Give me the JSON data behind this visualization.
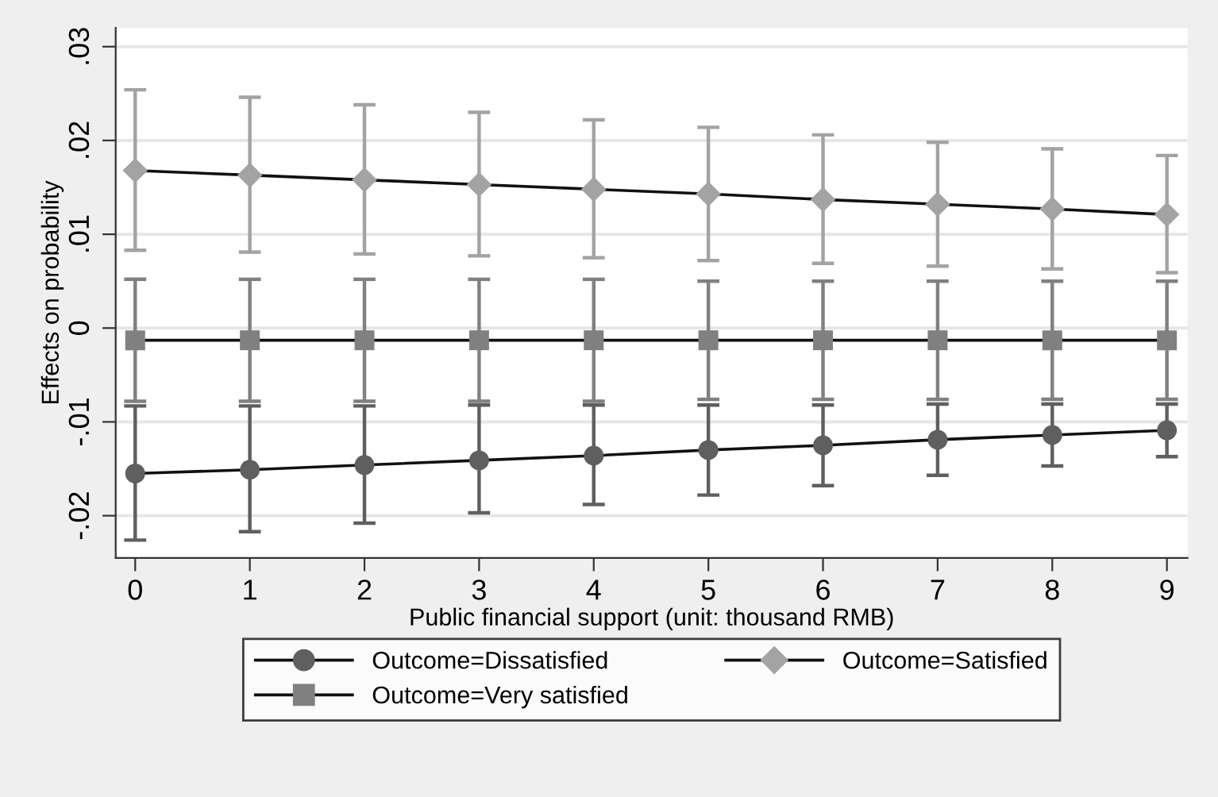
{
  "chart_data": {
    "type": "line",
    "xlabel": "Public financial support (unit: thousand RMB)",
    "ylabel": "Effects on probability",
    "x": [
      0,
      1,
      2,
      3,
      4,
      5,
      6,
      7,
      8,
      9
    ],
    "xlim": [
      -0.17,
      9.18
    ],
    "xticks": [
      0,
      1,
      2,
      3,
      4,
      5,
      6,
      7,
      8,
      9
    ],
    "ylim": [
      -0.0245,
      0.032
    ],
    "yticks": [
      {
        "value": -0.02,
        "label": "-.02"
      },
      {
        "value": -0.01,
        "label": "-.01"
      },
      0,
      {
        "value": 0.01,
        "label": ".01"
      },
      {
        "value": 0.02,
        "label": ".02"
      },
      {
        "value": 0.03,
        "label": ".03"
      }
    ],
    "grid": "y",
    "legend": "bottom",
    "line_style": "solid",
    "series": [
      {
        "name": "Outcome=Dissatisfied",
        "color": "#5f5f5f",
        "marker": "circle",
        "values": [
          -0.0155,
          -0.0151,
          -0.0146,
          -0.0141,
          -0.0136,
          -0.013,
          -0.0125,
          -0.0119,
          -0.0114,
          -0.0109
        ],
        "errors": [
          [
            -0.0226,
            -0.0083
          ],
          [
            -0.0217,
            -0.0083
          ],
          [
            -0.0208,
            -0.0083
          ],
          [
            -0.0197,
            -0.0082
          ],
          [
            -0.0188,
            -0.0082
          ],
          [
            -0.0178,
            -0.0082
          ],
          [
            -0.0168,
            -0.0082
          ],
          [
            -0.0157,
            -0.0081
          ],
          [
            -0.0147,
            -0.0081
          ],
          [
            -0.0137,
            -0.0081
          ]
        ]
      },
      {
        "name": "Outcome=Satisfied",
        "color": "#a3a3a3",
        "marker": "diamond",
        "values": [
          0.0168,
          0.0163,
          0.0158,
          0.0153,
          0.0148,
          0.0143,
          0.0137,
          0.0132,
          0.0127,
          0.0121
        ],
        "errors": [
          [
            0.0083,
            0.0254
          ],
          [
            0.0081,
            0.0246
          ],
          [
            0.0079,
            0.0238
          ],
          [
            0.0077,
            0.023
          ],
          [
            0.0075,
            0.0222
          ],
          [
            0.0072,
            0.0214
          ],
          [
            0.0069,
            0.0206
          ],
          [
            0.0066,
            0.0198
          ],
          [
            0.0063,
            0.0191
          ],
          [
            0.0059,
            0.0184
          ]
        ]
      },
      {
        "name": "Outcome=Very satisfied",
        "color": "#808080",
        "marker": "square",
        "values": [
          -0.0013,
          -0.0013,
          -0.0013,
          -0.0013,
          -0.0013,
          -0.0013,
          -0.0013,
          -0.0013,
          -0.0013,
          -0.0013
        ],
        "errors": [
          [
            -0.0078,
            0.0052
          ],
          [
            -0.0078,
            0.0052
          ],
          [
            -0.0078,
            0.0052
          ],
          [
            -0.0078,
            0.0052
          ],
          [
            -0.0078,
            0.0052
          ],
          [
            -0.0076,
            0.005
          ],
          [
            -0.0076,
            0.005
          ],
          [
            -0.0076,
            0.005
          ],
          [
            -0.0076,
            0.005
          ],
          [
            -0.0076,
            0.005
          ]
        ]
      }
    ]
  }
}
